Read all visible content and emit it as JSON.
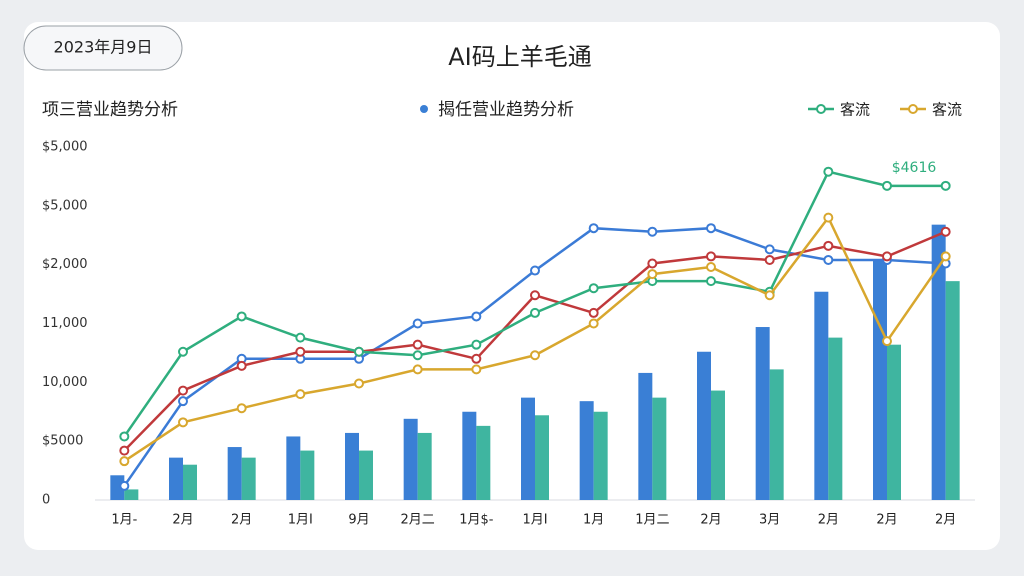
{
  "chart_data": {
    "type": "bar",
    "date": "2023年月9日",
    "title": "AI码上羊毛通",
    "subtitle_left": "项三营业趋势分析",
    "subtitle_center": "揭任营业趋势分析",
    "annotation": "$4616",
    "y_axis_labels": [
      "$5,000",
      "$5,000",
      "$2,000",
      "11,000",
      "10,000",
      "$5000",
      "0"
    ],
    "categories": [
      "1月-",
      "2月",
      "2月",
      "1月I",
      "9月",
      "2月二",
      "1月$-",
      "1月I",
      "1月",
      "1月二",
      "2月",
      "3月",
      "2月",
      "2月",
      "2月"
    ],
    "ylim": [
      0,
      100
    ],
    "series": [
      {
        "kind": "bar",
        "color": "#3a7fd5",
        "values": [
          7,
          12,
          15,
          18,
          19,
          23,
          25,
          29,
          28,
          36,
          42,
          49,
          59,
          68,
          78
        ]
      },
      {
        "kind": "bar",
        "color": "#3fb5a0",
        "values": [
          3,
          10,
          12,
          14,
          14,
          19,
          21,
          24,
          25,
          29,
          31,
          37,
          46,
          44,
          62
        ]
      },
      {
        "kind": "line",
        "color": "#3b7bd6",
        "values": [
          4,
          28,
          40,
          40,
          40,
          50,
          52,
          65,
          77,
          76,
          77,
          71,
          68,
          68,
          67
        ]
      },
      {
        "kind": "line",
        "color": "#c0393b",
        "values": [
          14,
          31,
          38,
          42,
          42,
          44,
          40,
          58,
          53,
          67,
          69,
          68,
          72,
          69,
          76
        ]
      },
      {
        "kind": "line",
        "name": "客流",
        "color": "#2fae7e",
        "values": [
          18,
          42,
          52,
          46,
          42,
          41,
          44,
          53,
          60,
          62,
          62,
          59,
          93,
          89,
          89
        ]
      },
      {
        "kind": "line",
        "name": "客流",
        "color": "#d8a72e",
        "values": [
          11,
          22,
          26,
          30,
          33,
          37,
          37,
          41,
          50,
          64,
          66,
          58,
          80,
          45,
          69
        ]
      }
    ]
  }
}
